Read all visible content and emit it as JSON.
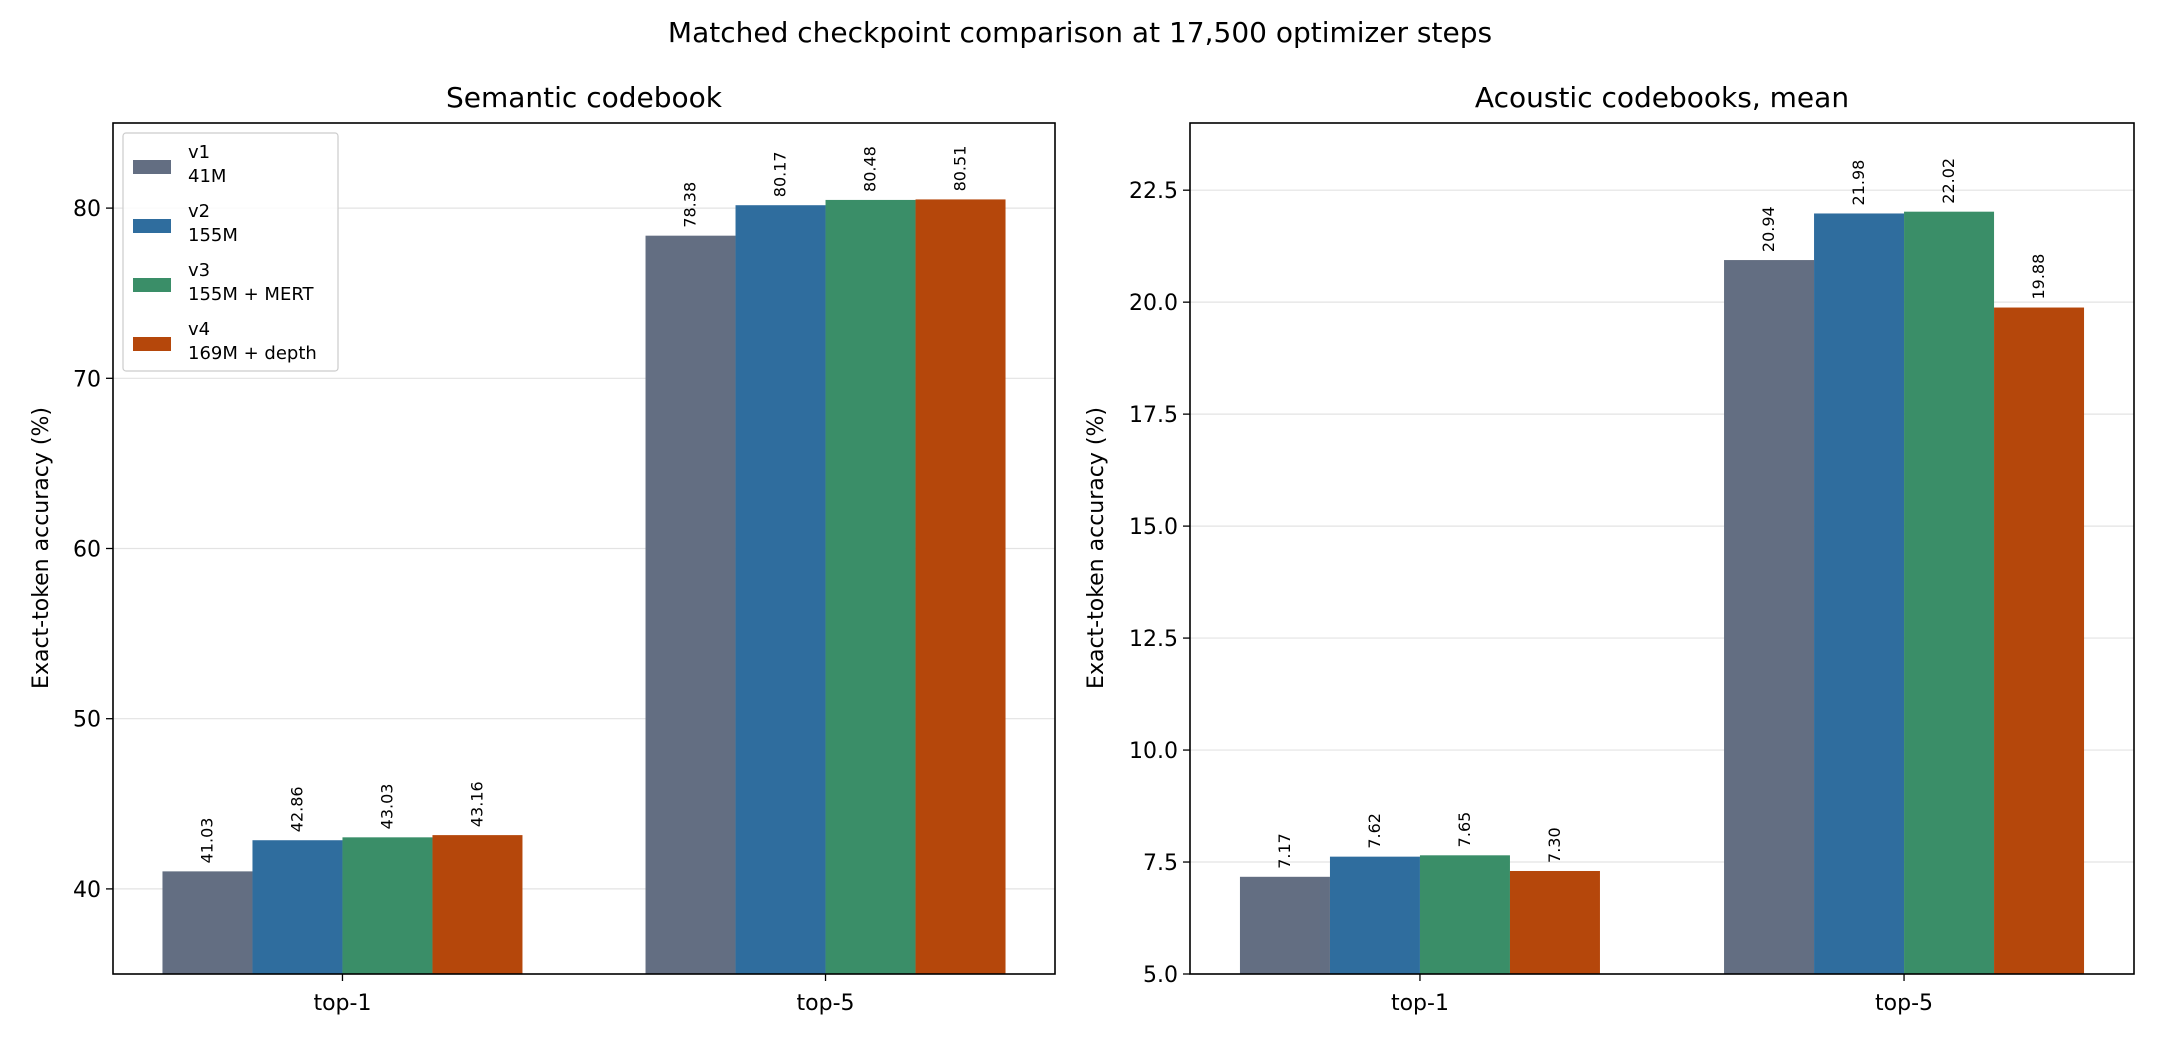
{
  "figure": {
    "title": "Matched checkpoint comparison at 17,500 optimizer steps"
  },
  "legend": {
    "entries": [
      {
        "line1": "v1",
        "line2": "41M",
        "color": "#636e82"
      },
      {
        "line1": "v2",
        "line2": "155M",
        "color": "#2f6d9e"
      },
      {
        "line1": "v3",
        "line2": "155M + MERT",
        "color": "#3a8e68"
      },
      {
        "line1": "v4",
        "line2": "169M + depth",
        "color": "#b5470b"
      }
    ]
  },
  "chart_data": [
    {
      "type": "bar",
      "title": "Semantic codebook",
      "xlabel": "",
      "ylabel": "Exact-token accuracy (%)",
      "categories": [
        "top-1",
        "top-5"
      ],
      "ylim": [
        35,
        85
      ],
      "yticks": [
        40,
        50,
        60,
        70,
        80
      ],
      "ytick_labels": [
        "40",
        "50",
        "60",
        "70",
        "80"
      ],
      "grid": "horizontal",
      "legend": "upper left",
      "series": [
        {
          "name": "v1\n41M",
          "color": "#636e82",
          "values": [
            41.03,
            78.38
          ],
          "labels": [
            "41.03",
            "78.38"
          ]
        },
        {
          "name": "v2\n155M",
          "color": "#2f6d9e",
          "values": [
            42.86,
            80.17
          ],
          "labels": [
            "42.86",
            "80.17"
          ]
        },
        {
          "name": "v3\n155M + MERT",
          "color": "#3a8e68",
          "values": [
            43.03,
            80.48
          ],
          "labels": [
            "43.03",
            "80.48"
          ]
        },
        {
          "name": "v4\n169M + depth",
          "color": "#b5470b",
          "values": [
            43.16,
            80.51
          ],
          "labels": [
            "43.16",
            "80.51"
          ]
        }
      ]
    },
    {
      "type": "bar",
      "title": "Acoustic codebooks, mean",
      "xlabel": "",
      "ylabel": "Exact-token accuracy (%)",
      "categories": [
        "top-1",
        "top-5"
      ],
      "ylim": [
        5.0,
        24.0
      ],
      "yticks": [
        5.0,
        7.5,
        10.0,
        12.5,
        15.0,
        17.5,
        20.0,
        22.5
      ],
      "ytick_labels": [
        "5.0",
        "7.5",
        "10.0",
        "12.5",
        "15.0",
        "17.5",
        "20.0",
        "22.5"
      ],
      "grid": "horizontal",
      "series": [
        {
          "name": "v1\n41M",
          "color": "#636e82",
          "values": [
            7.17,
            20.94
          ],
          "labels": [
            "7.17",
            "20.94"
          ]
        },
        {
          "name": "v2\n155M",
          "color": "#2f6d9e",
          "values": [
            7.62,
            21.98
          ],
          "labels": [
            "7.62",
            "21.98"
          ]
        },
        {
          "name": "v3\n155M + MERT",
          "color": "#3a8e68",
          "values": [
            7.65,
            22.02
          ],
          "labels": [
            "7.65",
            "22.02"
          ]
        },
        {
          "name": "v4\n169M + depth",
          "color": "#b5470b",
          "values": [
            7.3,
            19.88
          ],
          "labels": [
            "7.30",
            "19.88"
          ]
        }
      ]
    }
  ]
}
